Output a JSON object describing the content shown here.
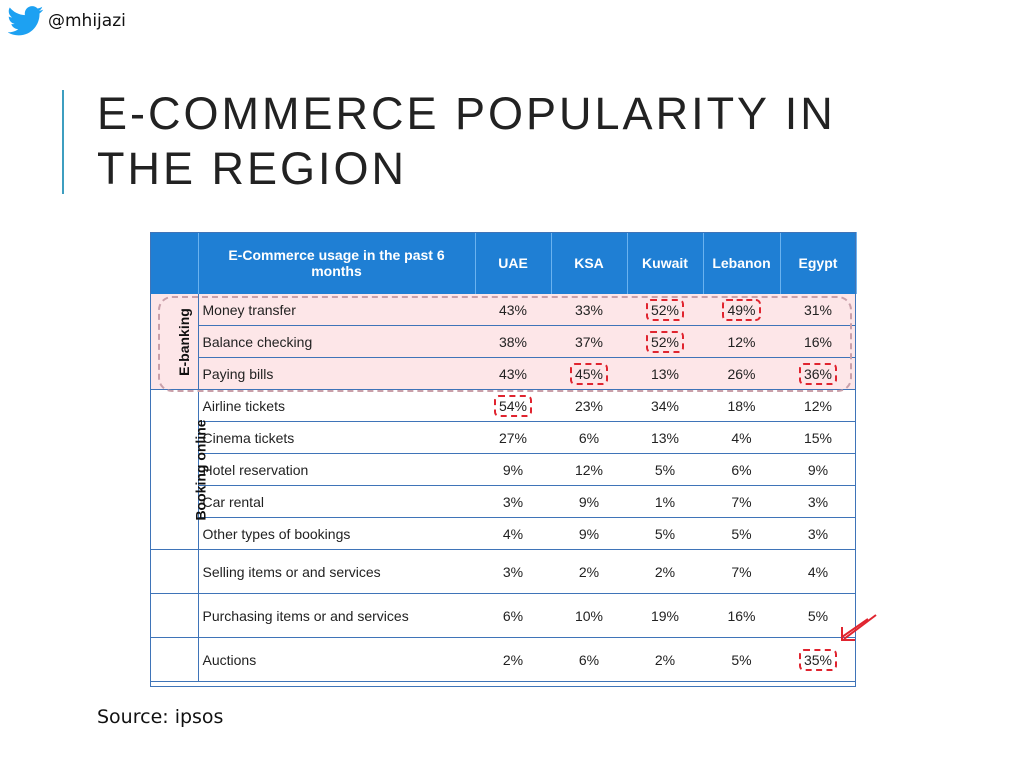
{
  "header": {
    "handle": "@mhijazi",
    "icon": "twitter-bird-icon",
    "icon_color": "#1da1f2"
  },
  "slide": {
    "title": "E-COMMERCE POPULARITY IN THE REGION",
    "accent_color": "#3e9ec0"
  },
  "table": {
    "header_color": "#1f7fd4",
    "highlight_color": "#e0242f",
    "columns": [
      "E-Commerce usage in the past 6 months",
      "UAE",
      "KSA",
      "Kuwait",
      "Lebanon",
      "Egypt"
    ],
    "groups": [
      {
        "label": "E-banking",
        "rows": [
          {
            "label": "Money transfer",
            "values": [
              "43%",
              "33%",
              "52%",
              "49%",
              "31%"
            ],
            "highlighted": [
              2,
              3
            ]
          },
          {
            "label": "Balance checking",
            "values": [
              "38%",
              "37%",
              "52%",
              "12%",
              "16%"
            ],
            "highlighted": [
              2
            ]
          },
          {
            "label": "Paying bills",
            "values": [
              "43%",
              "45%",
              "13%",
              "26%",
              "36%"
            ],
            "highlighted": [
              1,
              4
            ]
          }
        ]
      },
      {
        "label": "Booking online",
        "rows": [
          {
            "label": "Airline tickets",
            "values": [
              "54%",
              "23%",
              "34%",
              "18%",
              "12%"
            ],
            "highlighted": [
              0
            ]
          },
          {
            "label": "Cinema tickets",
            "values": [
              "27%",
              "6%",
              "13%",
              "4%",
              "15%"
            ],
            "highlighted": []
          },
          {
            "label": "Hotel reservation",
            "values": [
              "9%",
              "12%",
              "5%",
              "6%",
              "9%"
            ],
            "highlighted": []
          },
          {
            "label": "Car rental",
            "values": [
              "3%",
              "9%",
              "1%",
              "7%",
              "3%"
            ],
            "highlighted": []
          },
          {
            "label": "Other types of bookings",
            "values": [
              "4%",
              "9%",
              "5%",
              "5%",
              "3%"
            ],
            "highlighted": []
          }
        ]
      }
    ],
    "other_rows": [
      {
        "label": "Selling items or and services",
        "values": [
          "3%",
          "2%",
          "2%",
          "7%",
          "4%"
        ],
        "highlighted": []
      },
      {
        "label": "Purchasing items or and services",
        "values": [
          "6%",
          "10%",
          "19%",
          "16%",
          "5%"
        ],
        "highlighted": []
      },
      {
        "label": "Auctions",
        "values": [
          "2%",
          "6%",
          "2%",
          "5%",
          "35%"
        ],
        "highlighted": [
          4
        ]
      }
    ]
  },
  "source": "Source: ipsos"
}
